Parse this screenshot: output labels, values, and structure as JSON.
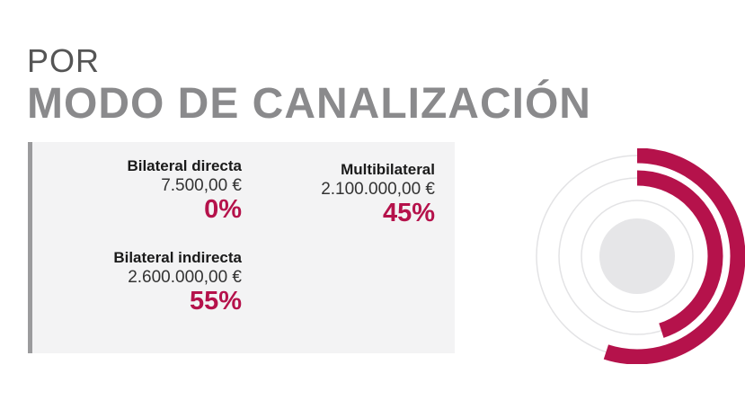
{
  "header": {
    "line1": "POR",
    "line2": "MODO DE CANALIZACIÓN"
  },
  "colors": {
    "accent": "#b5124b",
    "panel_bg": "#f3f3f4",
    "panel_border": "#9b9b9d",
    "ring_track": "#e3e3e5",
    "center": "#e6e6e8"
  },
  "chart_data": {
    "type": "radial-bar",
    "categories": [
      "Bilateral directa",
      "Multibilateral",
      "Bilateral indirecta"
    ],
    "series": [
      {
        "name": "Bilateral directa",
        "amount": "7.500,00 €",
        "value": 0,
        "label": "0%"
      },
      {
        "name": "Multibilateral",
        "amount": "2.100.000,00 €",
        "value": 45,
        "label": "45%"
      },
      {
        "name": "Bilateral indirecta",
        "amount": "2.600.000,00 €",
        "value": 55,
        "label": "55%"
      }
    ]
  }
}
